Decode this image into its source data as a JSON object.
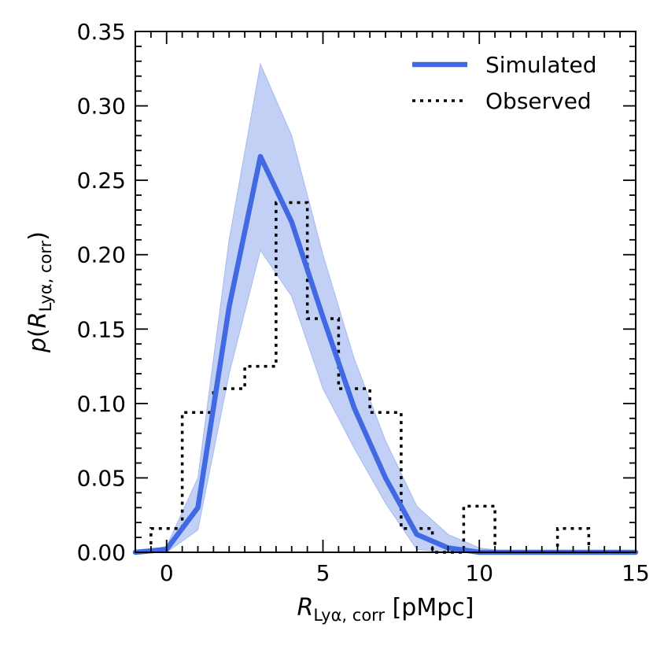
{
  "chart_data": {
    "type": "line",
    "title": "",
    "xlabel": {
      "var": "R",
      "sub": "Lyα, corr",
      "unit": " [pMpc]"
    },
    "ylabel": {
      "var": "p",
      "inner": "R",
      "sub": "Lyα, corr"
    },
    "xlim": [
      -1,
      15
    ],
    "ylim": [
      0,
      0.35
    ],
    "xticks": [
      0,
      5,
      10,
      15
    ],
    "yticks": [
      0.0,
      0.05,
      0.1,
      0.15,
      0.2,
      0.25,
      0.3,
      0.35
    ],
    "xtick_labels": [
      "0",
      "5",
      "10",
      "15"
    ],
    "ytick_labels": [
      "0.00",
      "0.05",
      "0.10",
      "0.15",
      "0.20",
      "0.25",
      "0.30",
      "0.35"
    ],
    "legend_position": "top-right",
    "series": [
      {
        "name": "Simulated",
        "style": "solid",
        "color": "#4169e1",
        "x": [
          -1,
          0,
          1,
          2,
          3,
          4,
          5,
          6,
          7,
          8,
          9,
          10,
          11,
          12,
          13,
          14,
          15
        ],
        "y": [
          0.0,
          0.002,
          0.03,
          0.165,
          0.266,
          0.222,
          0.158,
          0.097,
          0.05,
          0.012,
          0.003,
          0.0,
          0.0,
          0.0,
          0.0,
          0.0,
          0.0
        ],
        "band_low": [
          0.0,
          0.0,
          0.015,
          0.12,
          0.203,
          0.172,
          0.11,
          0.07,
          0.033,
          0.002,
          0.0,
          0.0,
          0.0,
          0.0,
          0.0,
          0.0,
          0.0
        ],
        "band_high": [
          0.0,
          0.004,
          0.05,
          0.21,
          0.328,
          0.28,
          0.2,
          0.13,
          0.075,
          0.031,
          0.012,
          0.003,
          0.0,
          0.0,
          0.0,
          0.0,
          0.0
        ],
        "band_color": "#b8c8f4"
      },
      {
        "name": "Observed",
        "style": "dotted-step",
        "color": "#000000",
        "bin_edges": [
          -1,
          -0.5,
          0.5,
          1.5,
          2.5,
          3.5,
          4.5,
          5.5,
          6.5,
          7.5,
          8.5,
          9.5,
          10.5,
          11.5,
          12.5,
          13.5,
          14.5
        ],
        "values": [
          0.0,
          0.016,
          0.094,
          0.11,
          0.125,
          0.235,
          0.157,
          0.11,
          0.094,
          0.016,
          0.0,
          0.031,
          0.0,
          0.0,
          0.016,
          0.0
        ]
      }
    ]
  }
}
